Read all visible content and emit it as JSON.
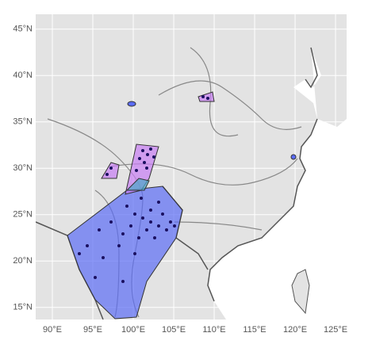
{
  "chart_data": {
    "type": "map",
    "xlim": [
      87.94,
      126.37
    ],
    "ylim": [
      13.7,
      46.6
    ],
    "xticks": [
      {
        "value": 90,
        "label": "90°E"
      },
      {
        "value": 95,
        "label": "95°E"
      },
      {
        "value": 100,
        "label": "100°E"
      },
      {
        "value": 105,
        "label": "105°E"
      },
      {
        "value": 110,
        "label": "110°E"
      },
      {
        "value": 115,
        "label": "115°E"
      },
      {
        "value": 120,
        "label": "120°E"
      },
      {
        "value": 125,
        "label": "125°E"
      }
    ],
    "yticks": [
      {
        "value": 15,
        "label": "15°N"
      },
      {
        "value": 20,
        "label": "20°N"
      },
      {
        "value": 25,
        "label": "25°N"
      },
      {
        "value": 30,
        "label": "30°N"
      },
      {
        "value": 35,
        "label": "35°N"
      },
      {
        "value": 40,
        "label": "40°N"
      },
      {
        "value": 45,
        "label": "45°N"
      }
    ],
    "grid": true
  }
}
